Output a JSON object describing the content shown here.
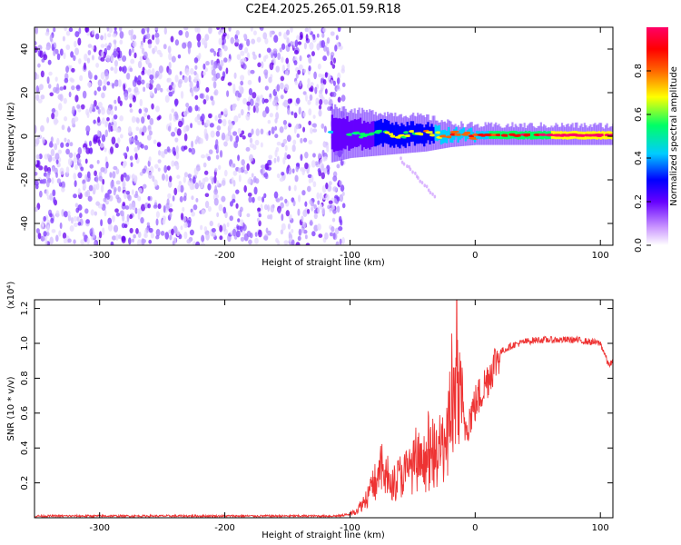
{
  "figure": {
    "title": "C2E4.2025.265.01.59.R18"
  },
  "chart_data": [
    {
      "type": "heatmap",
      "name": "spectrogram",
      "title": "C2E4.2025.265.01.59.R18",
      "xlabel": "Height of straight line (km)",
      "ylabel": "Frequency (Hz)",
      "xlim": [
        -352,
        110
      ],
      "ylim": [
        -50,
        50
      ],
      "xticks": [
        -300,
        -200,
        -100,
        0,
        100
      ],
      "yticks": [
        -40,
        -20,
        0,
        20,
        40
      ],
      "xticklabels": [
        "-300",
        "-200",
        "-100",
        "0",
        "100"
      ],
      "yticklabels": [
        "-40",
        "-20",
        "0",
        "20",
        "40"
      ],
      "noise_region_km": [
        -352,
        -112
      ],
      "signal_band": [
        {
          "x": -115,
          "f_low": -10,
          "f_high": 12,
          "level": 0.25
        },
        {
          "x": -100,
          "f_low": -8,
          "f_high": 10,
          "level": 0.3
        },
        {
          "x": -80,
          "f_low": -7,
          "f_high": 9,
          "level": 0.35
        },
        {
          "x": -60,
          "f_low": -6,
          "f_high": 8,
          "level": 0.4
        },
        {
          "x": -40,
          "f_low": -5,
          "f_high": 7,
          "level": 0.45
        },
        {
          "x": -20,
          "f_low": -3,
          "f_high": 4,
          "level": 0.55
        },
        {
          "x": 0,
          "f_low": -2,
          "f_high": 3,
          "level": 0.6
        },
        {
          "x": 20,
          "f_low": -2,
          "f_high": 3,
          "level": 0.65
        },
        {
          "x": 50,
          "f_low": -2,
          "f_high": 3,
          "level": 0.7
        },
        {
          "x": 80,
          "f_low": -2,
          "f_high": 3,
          "level": 0.9
        },
        {
          "x": 110,
          "f_low": -2,
          "f_high": 3,
          "level": 0.85
        }
      ],
      "colorbar": {
        "label": "Normalized spectral amplitude",
        "ticks": [
          0.0,
          0.2,
          0.4,
          0.6,
          0.8
        ],
        "ticklabels": [
          "0.0",
          "0.2",
          "0.4",
          "0.6",
          "0.8"
        ],
        "range": [
          0,
          1
        ],
        "colors": [
          "#ffffff",
          "#cc99ff",
          "#6600ff",
          "#0000ff",
          "#00ccff",
          "#00ff66",
          "#ffff00",
          "#ff6600",
          "#ff0000",
          "#ff0066"
        ]
      }
    },
    {
      "type": "line",
      "name": "snr",
      "xlabel": "Height of straight line (km)",
      "ylabel": "SNR (10 * v/v)",
      "yscale_label": "(x10⁴)",
      "xlim": [
        -352,
        110
      ],
      "ylim": [
        0,
        1.25
      ],
      "xticks": [
        -300,
        -200,
        -100,
        0,
        100
      ],
      "yticks": [
        0.2,
        0.4,
        0.6,
        0.8,
        1.0,
        1.2
      ],
      "xticklabels": [
        "-300",
        "-200",
        "-100",
        "0",
        "100"
      ],
      "yticklabels": [
        "0.2",
        "0.4",
        "0.6",
        "0.8",
        "1.0",
        "1.2"
      ],
      "color": "#ee3333",
      "x": [
        -352,
        -300,
        -250,
        -200,
        -150,
        -110,
        -100,
        -95,
        -90,
        -85,
        -80,
        -75,
        -70,
        -65,
        -60,
        -55,
        -50,
        -45,
        -40,
        -35,
        -30,
        -25,
        -22,
        -20,
        -18,
        -15,
        -12,
        -10,
        -8,
        -5,
        -2,
        0,
        5,
        10,
        15,
        20,
        30,
        40,
        50,
        60,
        70,
        80,
        90,
        100,
        104,
        106,
        110
      ],
      "y": [
        0.01,
        0.01,
        0.01,
        0.01,
        0.01,
        0.01,
        0.02,
        0.04,
        0.08,
        0.14,
        0.2,
        0.28,
        0.22,
        0.2,
        0.24,
        0.26,
        0.3,
        0.28,
        0.32,
        0.34,
        0.36,
        0.42,
        0.5,
        0.55,
        0.6,
        0.7,
        0.62,
        0.58,
        0.52,
        0.56,
        0.62,
        0.65,
        0.72,
        0.8,
        0.88,
        0.95,
        0.99,
        1.01,
        1.02,
        1.02,
        1.02,
        1.02,
        1.01,
        1.0,
        0.93,
        0.88,
        0.89
      ]
    }
  ]
}
